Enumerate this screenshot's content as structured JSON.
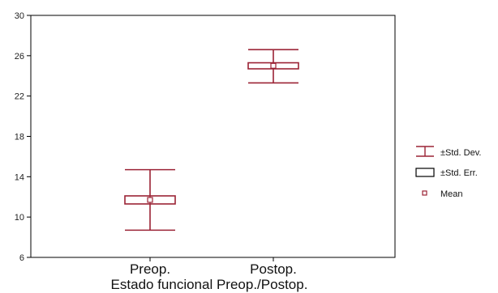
{
  "chart_data": {
    "type": "box-whisker",
    "title": "",
    "xlabel": "Estado funcional Preop./Postop.",
    "ylabel": "",
    "categories": [
      "Preop.",
      "Postop."
    ],
    "ylim": [
      6,
      30
    ],
    "yticks": [
      6,
      10,
      14,
      18,
      22,
      26,
      30
    ],
    "grid": false,
    "legend_position": "right",
    "series": [
      {
        "category": "Preop.",
        "mean": 11.7,
        "std_err_low": 11.3,
        "std_err_high": 12.1,
        "std_dev_low": 8.7,
        "std_dev_high": 14.7
      },
      {
        "category": "Postop.",
        "mean": 25.0,
        "std_err_low": 24.7,
        "std_err_high": 25.3,
        "std_dev_low": 23.3,
        "std_dev_high": 26.6
      }
    ],
    "legend": [
      {
        "key": "std_dev",
        "label": "±Std. Dev."
      },
      {
        "key": "std_err",
        "label": "±Std. Err."
      },
      {
        "key": "mean",
        "label": "Mean"
      }
    ],
    "colors": {
      "mark": "#9b2335",
      "axis": "#000000",
      "legend_box": "#000000"
    }
  }
}
